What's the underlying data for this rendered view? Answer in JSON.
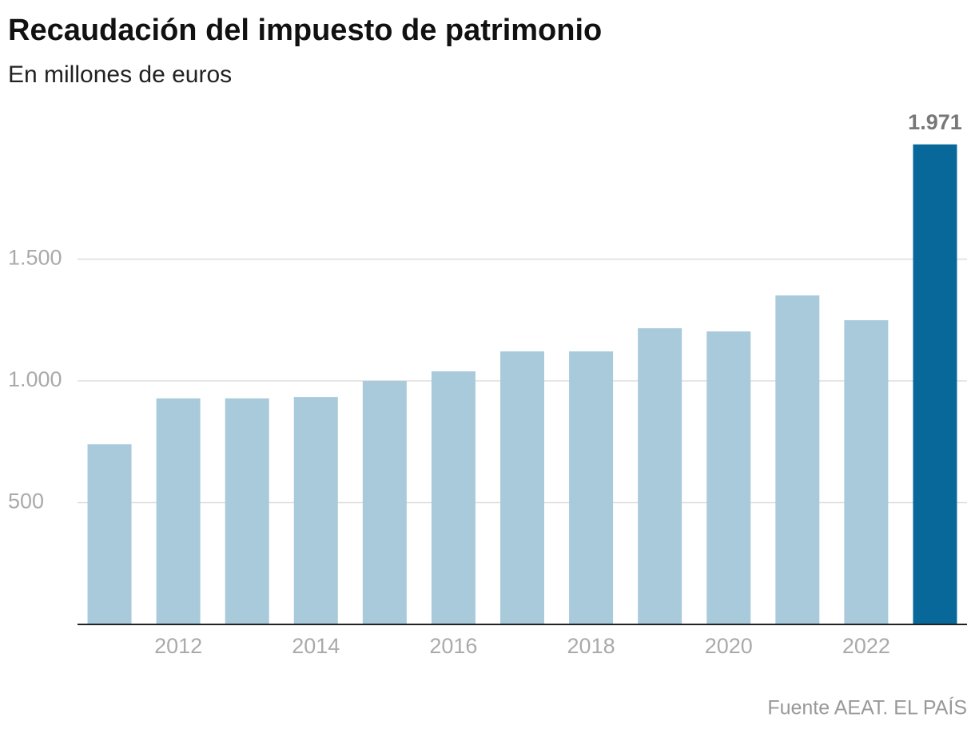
{
  "chart_data": {
    "type": "bar",
    "title": "Recaudación del impuesto de patrimonio",
    "subtitle": "En millones de euros",
    "source": "Fuente AEAT. EL PAÍS",
    "categories": [
      null,
      "2012",
      null,
      "2014",
      null,
      "2016",
      null,
      "2018",
      null,
      "2020",
      null,
      "2022",
      null
    ],
    "values": [
      740,
      928,
      928,
      934,
      1000,
      1039,
      1121,
      1121,
      1216,
      1203,
      1351,
      1249,
      1971
    ],
    "value_labels": [
      null,
      null,
      null,
      null,
      null,
      null,
      null,
      null,
      null,
      null,
      null,
      null,
      "1.971"
    ],
    "colors": [
      "#a8cadb",
      "#a8cadb",
      "#a8cadb",
      "#a8cadb",
      "#a8cadb",
      "#a8cadb",
      "#a8cadb",
      "#a8cadb",
      "#a8cadb",
      "#a8cadb",
      "#a8cadb",
      "#a8cadb",
      "#08689a"
    ],
    "ylim": [
      0,
      2000
    ],
    "yticks": [
      500,
      {
        "value": 1000,
        "label": "1.000"
      },
      {
        "value": 1500,
        "label": "1.500"
      }
    ],
    "grid": true
  }
}
